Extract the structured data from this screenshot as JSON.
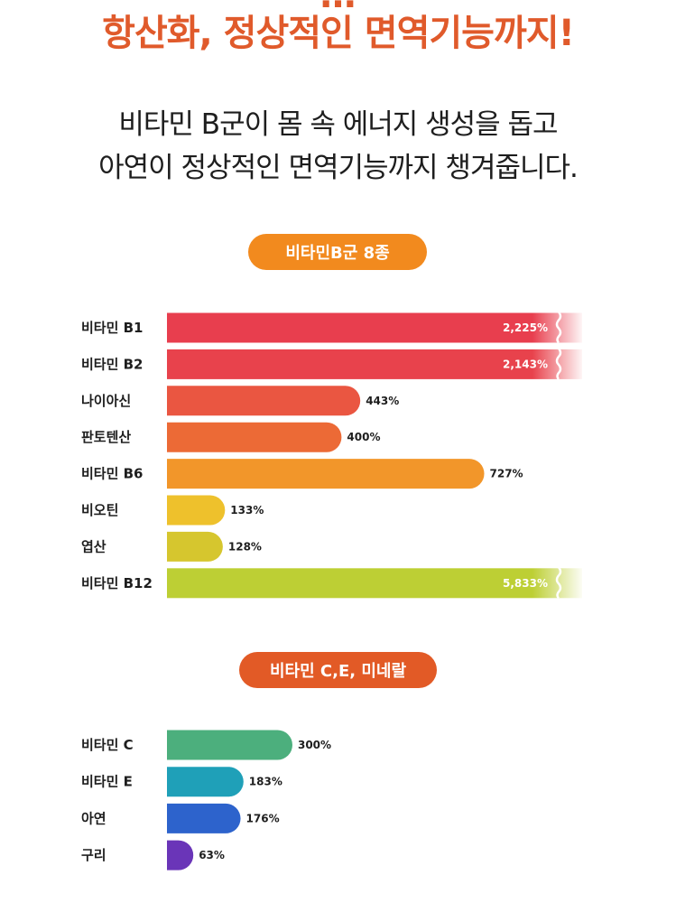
{
  "header": {
    "headline_partial": "…",
    "headline": "항산화, 정상적인 면역기능까지!",
    "sub_line1": "비타민 B군이 몸 속 에너지 생성을 돕고",
    "sub_line2": "아연이 정상적인 면역기능까지 챙겨줍니다."
  },
  "colors": {
    "accent": "#e05a2b",
    "pill1": "#f28a1e",
    "pill2": "#e25a26"
  },
  "chart_data": [
    {
      "type": "bar",
      "orientation": "horizontal",
      "title": "비타민B군 8종",
      "categories": [
        "비타민 B1",
        "비타민 B2",
        "나이아신",
        "판토텐산",
        "비타민 B6",
        "비오틴",
        "엽산",
        "비타민 B12"
      ],
      "values": [
        2225,
        2143,
        443,
        400,
        727,
        133,
        128,
        5833
      ],
      "value_labels": [
        "2,225%",
        "2,143%",
        "443%",
        "400%",
        "727%",
        "133%",
        "128%",
        "5,833%"
      ],
      "unit": "%",
      "truncated_above": 800,
      "colors": [
        "#e83e4e",
        "#e8424c",
        "#ea5641",
        "#ec6a36",
        "#f2962a",
        "#eec12c",
        "#d6c62e",
        "#bdcf34"
      ],
      "grid": false
    },
    {
      "type": "bar",
      "orientation": "horizontal",
      "title": "비타민 C,E, 미네랄",
      "categories": [
        "비타민 C",
        "비타민 E",
        "아연",
        "구리"
      ],
      "values": [
        300,
        183,
        176,
        63
      ],
      "value_labels": [
        "300%",
        "183%",
        "176%",
        "63%"
      ],
      "unit": "%",
      "colors": [
        "#4caf7d",
        "#1fa0b8",
        "#2d63cc",
        "#6a35b8"
      ],
      "grid": false
    }
  ]
}
